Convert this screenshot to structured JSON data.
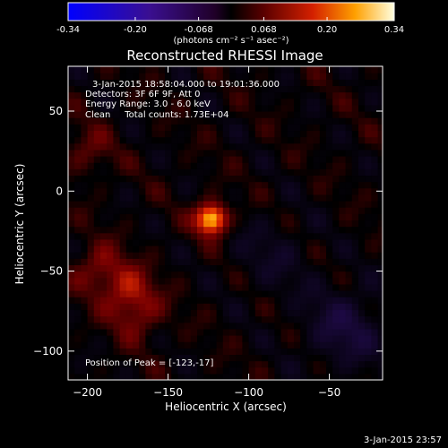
{
  "colorbar": {
    "ticks": [
      "-0.34",
      "-0.20",
      "-0.068",
      "0.068",
      "0.20",
      "0.34"
    ],
    "tick_values": [
      -0.34,
      -0.2,
      -0.068,
      0.068,
      0.2,
      0.34
    ],
    "range": [
      -0.34,
      0.34
    ],
    "units_text": "(photons cm⁻² s⁻¹ asec⁻²)"
  },
  "chart_data": {
    "type": "heatmap",
    "title": "Reconstructed RHESSI Image",
    "xlabel": "Heliocentric X (arcsec)",
    "ylabel": "Heliocentric Y (arcsec)",
    "xlim": [
      -212,
      -17
    ],
    "ylim": [
      -118,
      78
    ],
    "xticks": [
      -200,
      -150,
      -100,
      -50
    ],
    "yticks": [
      -100,
      -50,
      0,
      50
    ],
    "annotations": [
      "3-Jan-2015 18:58:04.000 to 19:01:36.000",
      "Detectors: 3F 6F 9F, Att 0",
      "Energy Range: 3.0 - 6.0 keV",
      "Clean     Total counts: 1.73E+04"
    ],
    "peak_label": "Position of Peak = [-123,-17]",
    "peak": {
      "x": -123,
      "y": -17,
      "value": 0.34
    },
    "secondary_sources": [
      {
        "x": -193,
        "y": -48,
        "value": 0.12
      },
      {
        "x": -175,
        "y": -62,
        "value": 0.13
      },
      {
        "x": -168,
        "y": -78,
        "value": 0.1
      },
      {
        "x": -200,
        "y": 25,
        "value": 0.08
      }
    ],
    "negative_regions": [
      {
        "x": -40,
        "y": -85,
        "value": -0.12
      },
      {
        "x": -85,
        "y": -40,
        "value": -0.06
      }
    ]
  },
  "footer": {
    "timestamp": "3-Jan-2015 23:57"
  }
}
